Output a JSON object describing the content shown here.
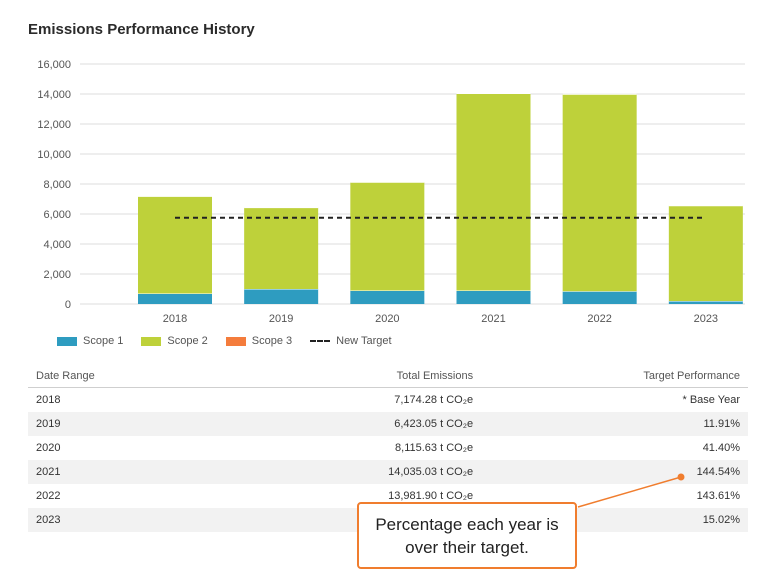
{
  "page": {
    "title": "Emissions Performance History"
  },
  "chart_data": {
    "type": "bar",
    "stacked": true,
    "categories": [
      "2018",
      "2019",
      "2020",
      "2021",
      "2022",
      "2023"
    ],
    "series": [
      {
        "name": "Scope 1",
        "color": "#2e9cc0",
        "values": [
          700,
          1000,
          900,
          900,
          850,
          200
        ]
      },
      {
        "name": "Scope 2",
        "color": "#bed13a",
        "values": [
          6474,
          5423,
          7216,
          13135,
          13132,
          6350
        ]
      },
      {
        "name": "Scope 3",
        "color": "#f47c3c",
        "values": [
          0,
          0,
          0,
          0,
          0,
          0
        ]
      }
    ],
    "target": {
      "name": "New Target",
      "value": 5750,
      "style": "dashed",
      "color": "#222222"
    },
    "ylim": [
      0,
      16000
    ],
    "yticks": [
      "0",
      "2,000",
      "4,000",
      "6,000",
      "8,000",
      "10,000",
      "12,000",
      "14,000",
      "16,000"
    ],
    "grid": true,
    "legend_position": "bottom-left"
  },
  "table": {
    "headers": [
      "Date Range",
      "Total Emissions",
      "Target Performance"
    ],
    "rows": [
      {
        "date": "2018",
        "total": "7,174.28 t CO₂e",
        "perf": "* Base Year"
      },
      {
        "date": "2019",
        "total": "6,423.05 t CO₂e",
        "perf": "11.91%"
      },
      {
        "date": "2020",
        "total": "8,115.63 t CO₂e",
        "perf": "41.40%"
      },
      {
        "date": "2021",
        "total": "14,035.03 t CO₂e",
        "perf": "144.54%"
      },
      {
        "date": "2022",
        "total": "13,981.90 t CO₂e",
        "perf": "143.61%"
      },
      {
        "date": "2023",
        "total": "",
        "perf": "15.02%"
      }
    ]
  },
  "callout": {
    "text": "Percentage each year is over their target."
  }
}
